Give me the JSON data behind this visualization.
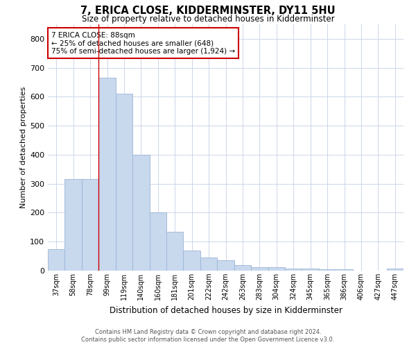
{
  "title": "7, ERICA CLOSE, KIDDERMINSTER, DY11 5HU",
  "subtitle": "Size of property relative to detached houses in Kidderminster",
  "xlabel": "Distribution of detached houses by size in Kidderminster",
  "ylabel": "Number of detached properties",
  "categories": [
    "37sqm",
    "58sqm",
    "78sqm",
    "99sqm",
    "119sqm",
    "140sqm",
    "160sqm",
    "181sqm",
    "201sqm",
    "222sqm",
    "242sqm",
    "263sqm",
    "283sqm",
    "304sqm",
    "324sqm",
    "345sqm",
    "365sqm",
    "386sqm",
    "406sqm",
    "427sqm",
    "447sqm"
  ],
  "values": [
    75,
    315,
    315,
    665,
    610,
    400,
    200,
    135,
    70,
    45,
    37,
    20,
    12,
    13,
    8,
    8,
    4,
    4,
    1,
    1,
    8
  ],
  "bar_color": "#c8d8ed",
  "bar_edge_color": "#9ab5d5",
  "redline_index": 2,
  "annotation_title": "7 ERICA CLOSE: 88sqm",
  "annotation_line1": "← 25% of detached houses are smaller (648)",
  "annotation_line2": "75% of semi-detached houses are larger (1,924) →",
  "annotation_box_color": "#ffffff",
  "annotation_box_edge": "#cc0000",
  "footnote1": "Contains HM Land Registry data © Crown copyright and database right 2024.",
  "footnote2": "Contains public sector information licensed under the Open Government Licence v3.0.",
  "ylim": [
    0,
    850
  ],
  "yticks": [
    0,
    100,
    200,
    300,
    400,
    500,
    600,
    700,
    800
  ],
  "background_color": "#ffffff",
  "grid_color": "#ccd6e8"
}
